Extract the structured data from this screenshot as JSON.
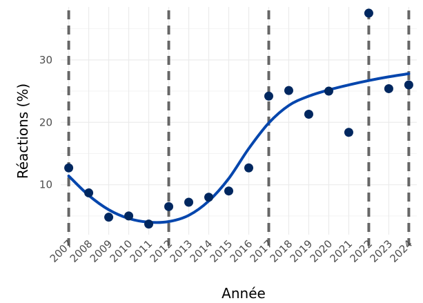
{
  "chart_data": {
    "type": "scatter",
    "xlabel": "Année",
    "ylabel": "Réactions (%)",
    "x": [
      2007,
      2008,
      2009,
      2010,
      2011,
      2012,
      2013,
      2014,
      2015,
      2016,
      2017,
      2018,
      2019,
      2020,
      2021,
      2022,
      2023,
      2024
    ],
    "x_tick_labels": [
      "2007",
      "2008",
      "2009",
      "2010",
      "2011",
      "2012",
      "2013",
      "2014",
      "2015",
      "2016",
      "2017",
      "2018",
      "2019",
      "2020",
      "2021",
      "2022",
      "2023",
      "2024"
    ],
    "y": [
      12.7,
      8.7,
      4.8,
      5.0,
      3.7,
      6.5,
      7.2,
      8.0,
      9.0,
      12.7,
      24.2,
      25.1,
      21.3,
      25.0,
      18.4,
      37.5,
      25.4,
      26.0
    ],
    "y_ticks": [
      10,
      20,
      30
    ],
    "xlim": [
      2006.6,
      2024.4
    ],
    "ylim": [
      2.0,
      38.5
    ],
    "grid": true,
    "trend_line": {
      "x": [
        2007,
        2008,
        2009,
        2010,
        2011,
        2012,
        2013,
        2014,
        2015,
        2016,
        2017,
        2018,
        2019,
        2020,
        2021,
        2022,
        2023,
        2024
      ],
      "y": [
        11.4,
        8.3,
        6.0,
        4.6,
        4.0,
        4.1,
        5.1,
        7.4,
        11.0,
        15.8,
        19.9,
        22.7,
        24.2,
        25.2,
        26.0,
        26.7,
        27.3,
        27.8
      ]
    },
    "vertical_reference_lines_x": [
      2007,
      2012,
      2017,
      2022,
      2024
    ],
    "colors": {
      "points": "#00275f",
      "trend": "#0546ad",
      "reference_lines": "#666666",
      "grid_major": "#ebebeb",
      "grid_minor": "#f3f3f3"
    }
  }
}
